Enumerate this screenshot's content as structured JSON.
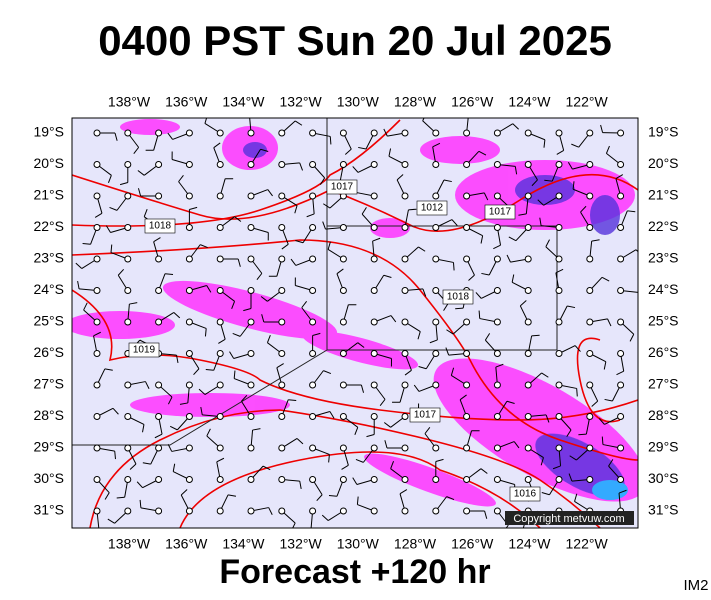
{
  "header": {
    "title": "0400 PST Sun 20 Jul 2025"
  },
  "map": {
    "longitudes": [
      "138°W",
      "136°W",
      "134°W",
      "132°W",
      "130°W",
      "128°W",
      "126°W",
      "124°W",
      "122°W"
    ],
    "latitudes": [
      "19°S",
      "20°S",
      "21°S",
      "22°S",
      "23°S",
      "24°S",
      "25°S",
      "26°S",
      "27°S",
      "28°S",
      "29°S",
      "30°S",
      "31°S"
    ],
    "isobar_labels": [
      "1017",
      "1012",
      "1017",
      "1018",
      "1019",
      "1018",
      "1017",
      "1016"
    ],
    "copyright": "Copyright metvuw.com"
  },
  "footer": {
    "forecast": "Forecast +120 hr",
    "code": "IM2"
  }
}
